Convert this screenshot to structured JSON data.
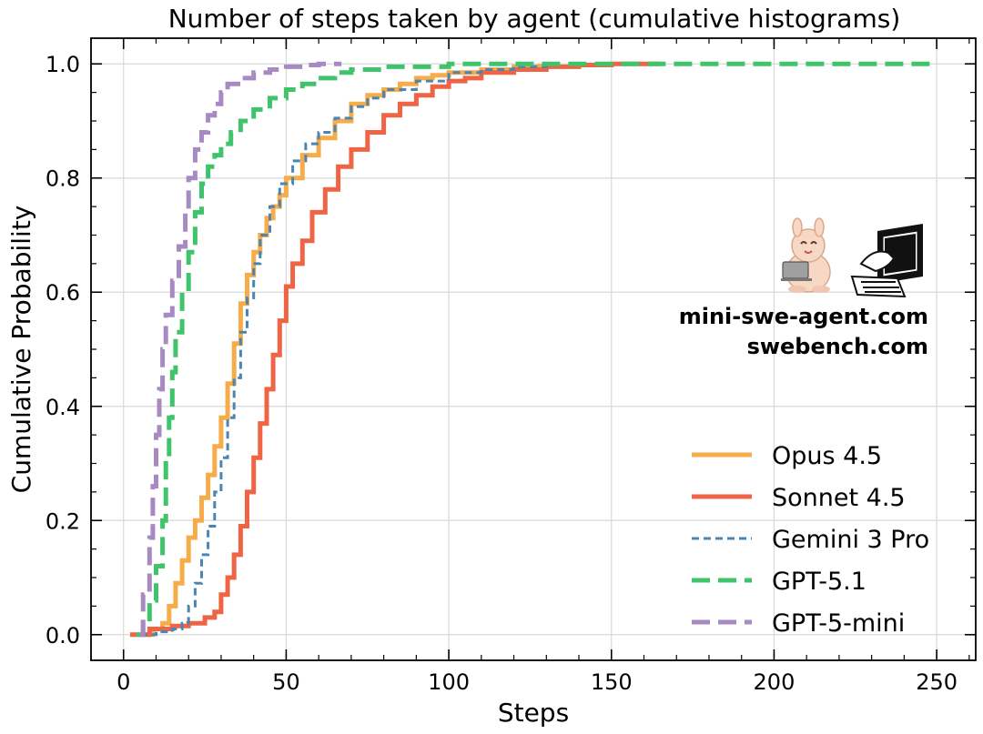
{
  "chart_data": {
    "type": "line",
    "title": "Number of steps taken by agent (cumulative histograms)",
    "xlabel": "Steps",
    "ylabel": "Cumulative Probability",
    "xlim": [
      -10,
      262
    ],
    "ylim": [
      -0.045,
      1.045
    ],
    "xticks": [
      0,
      50,
      100,
      150,
      200,
      250
    ],
    "yticks": [
      0.0,
      0.2,
      0.4,
      0.6,
      0.8,
      1.0
    ],
    "xtick_labels": [
      "0",
      "50",
      "100",
      "150",
      "200",
      "250"
    ],
    "ytick_labels": [
      "0.0",
      "0.2",
      "0.4",
      "0.6",
      "0.8",
      "1.0"
    ],
    "grid": true,
    "legend_position": "lower-right",
    "watermark": [
      "mini-swe-agent.com",
      "swebench.com"
    ],
    "series": [
      {
        "name": "Opus 4.5",
        "color": "#f6ad49",
        "dash": "solid",
        "width": "thick",
        "points": [
          [
            7,
            0.0
          ],
          [
            9,
            0.01
          ],
          [
            12,
            0.02
          ],
          [
            14,
            0.05
          ],
          [
            16,
            0.09
          ],
          [
            18,
            0.13
          ],
          [
            20,
            0.17
          ],
          [
            22,
            0.2
          ],
          [
            24,
            0.24
          ],
          [
            26,
            0.28
          ],
          [
            28,
            0.33
          ],
          [
            30,
            0.38
          ],
          [
            32,
            0.44
          ],
          [
            34,
            0.51
          ],
          [
            36,
            0.58
          ],
          [
            38,
            0.63
          ],
          [
            40,
            0.67
          ],
          [
            42,
            0.7
          ],
          [
            44,
            0.73
          ],
          [
            46,
            0.75
          ],
          [
            48,
            0.77
          ],
          [
            50,
            0.8
          ],
          [
            55,
            0.84
          ],
          [
            60,
            0.87
          ],
          [
            65,
            0.9
          ],
          [
            70,
            0.93
          ],
          [
            75,
            0.945
          ],
          [
            80,
            0.955
          ],
          [
            85,
            0.965
          ],
          [
            90,
            0.975
          ],
          [
            95,
            0.98
          ],
          [
            100,
            0.985
          ],
          [
            110,
            0.99
          ],
          [
            120,
            0.995
          ],
          [
            128,
            1.0
          ]
        ]
      },
      {
        "name": "Sonnet 4.5",
        "color": "#ef6445",
        "dash": "solid",
        "width": "thick",
        "points": [
          [
            2,
            0.0
          ],
          [
            8,
            0.01
          ],
          [
            15,
            0.015
          ],
          [
            20,
            0.02
          ],
          [
            25,
            0.03
          ],
          [
            28,
            0.04
          ],
          [
            30,
            0.07
          ],
          [
            32,
            0.1
          ],
          [
            34,
            0.14
          ],
          [
            36,
            0.19
          ],
          [
            38,
            0.25
          ],
          [
            40,
            0.31
          ],
          [
            42,
            0.37
          ],
          [
            44,
            0.43
          ],
          [
            46,
            0.49
          ],
          [
            48,
            0.55
          ],
          [
            50,
            0.61
          ],
          [
            52,
            0.65
          ],
          [
            55,
            0.69
          ],
          [
            58,
            0.74
          ],
          [
            62,
            0.78
          ],
          [
            66,
            0.82
          ],
          [
            70,
            0.85
          ],
          [
            75,
            0.88
          ],
          [
            80,
            0.91
          ],
          [
            85,
            0.93
          ],
          [
            90,
            0.945
          ],
          [
            95,
            0.96
          ],
          [
            100,
            0.97
          ],
          [
            105,
            0.975
          ],
          [
            110,
            0.985
          ],
          [
            120,
            0.99
          ],
          [
            130,
            0.995
          ],
          [
            140,
            0.998
          ],
          [
            150,
            1.0
          ],
          [
            165,
            1.0
          ]
        ]
      },
      {
        "name": "Gemini 3 Pro",
        "color": "#4a86b4",
        "dash": "thin-dash",
        "width": "thin",
        "points": [
          [
            5,
            0.0
          ],
          [
            10,
            0.005
          ],
          [
            15,
            0.01
          ],
          [
            18,
            0.02
          ],
          [
            20,
            0.05
          ],
          [
            22,
            0.09
          ],
          [
            24,
            0.14
          ],
          [
            26,
            0.19
          ],
          [
            28,
            0.25
          ],
          [
            30,
            0.31
          ],
          [
            32,
            0.38
          ],
          [
            34,
            0.45
          ],
          [
            36,
            0.53
          ],
          [
            38,
            0.59
          ],
          [
            40,
            0.65
          ],
          [
            42,
            0.7
          ],
          [
            45,
            0.75
          ],
          [
            48,
            0.79
          ],
          [
            52,
            0.83
          ],
          [
            56,
            0.86
          ],
          [
            60,
            0.88
          ],
          [
            65,
            0.905
          ],
          [
            70,
            0.925
          ],
          [
            75,
            0.94
          ],
          [
            80,
            0.955
          ],
          [
            90,
            0.97
          ],
          [
            100,
            0.985
          ],
          [
            110,
            0.99
          ],
          [
            120,
            0.995
          ],
          [
            130,
            1.0
          ]
        ]
      },
      {
        "name": "GPT-5.1",
        "color": "#3fc46c",
        "dash": "long-dash",
        "width": "thick",
        "points": [
          [
            4,
            0.0
          ],
          [
            6,
            0.02
          ],
          [
            8,
            0.06
          ],
          [
            10,
            0.12
          ],
          [
            12,
            0.2
          ],
          [
            13,
            0.3
          ],
          [
            14,
            0.38
          ],
          [
            15,
            0.46
          ],
          [
            16,
            0.53
          ],
          [
            18,
            0.6
          ],
          [
            20,
            0.67
          ],
          [
            22,
            0.74
          ],
          [
            24,
            0.79
          ],
          [
            26,
            0.82
          ],
          [
            28,
            0.84
          ],
          [
            30,
            0.86
          ],
          [
            33,
            0.88
          ],
          [
            36,
            0.9
          ],
          [
            40,
            0.92
          ],
          [
            45,
            0.94
          ],
          [
            50,
            0.955
          ],
          [
            55,
            0.965
          ],
          [
            60,
            0.975
          ],
          [
            65,
            0.985
          ],
          [
            70,
            0.99
          ],
          [
            80,
            0.995
          ],
          [
            100,
            1.0
          ],
          [
            248,
            1.0
          ]
        ]
      },
      {
        "name": "GPT-5-mini",
        "color": "#a88ac3",
        "dash": "long-dash",
        "width": "thick",
        "points": [
          [
            5,
            0.0
          ],
          [
            6,
            0.07
          ],
          [
            8,
            0.17
          ],
          [
            9,
            0.26
          ],
          [
            10,
            0.35
          ],
          [
            11,
            0.43
          ],
          [
            12,
            0.5
          ],
          [
            13,
            0.56
          ],
          [
            15,
            0.62
          ],
          [
            17,
            0.68
          ],
          [
            19,
            0.74
          ],
          [
            20,
            0.8
          ],
          [
            22,
            0.85
          ],
          [
            24,
            0.88
          ],
          [
            26,
            0.91
          ],
          [
            28,
            0.93
          ],
          [
            30,
            0.95
          ],
          [
            32,
            0.965
          ],
          [
            36,
            0.975
          ],
          [
            40,
            0.985
          ],
          [
            45,
            0.99
          ],
          [
            50,
            0.995
          ],
          [
            55,
            0.998
          ],
          [
            60,
            1.0
          ],
          [
            67,
            1.0
          ]
        ]
      }
    ]
  }
}
